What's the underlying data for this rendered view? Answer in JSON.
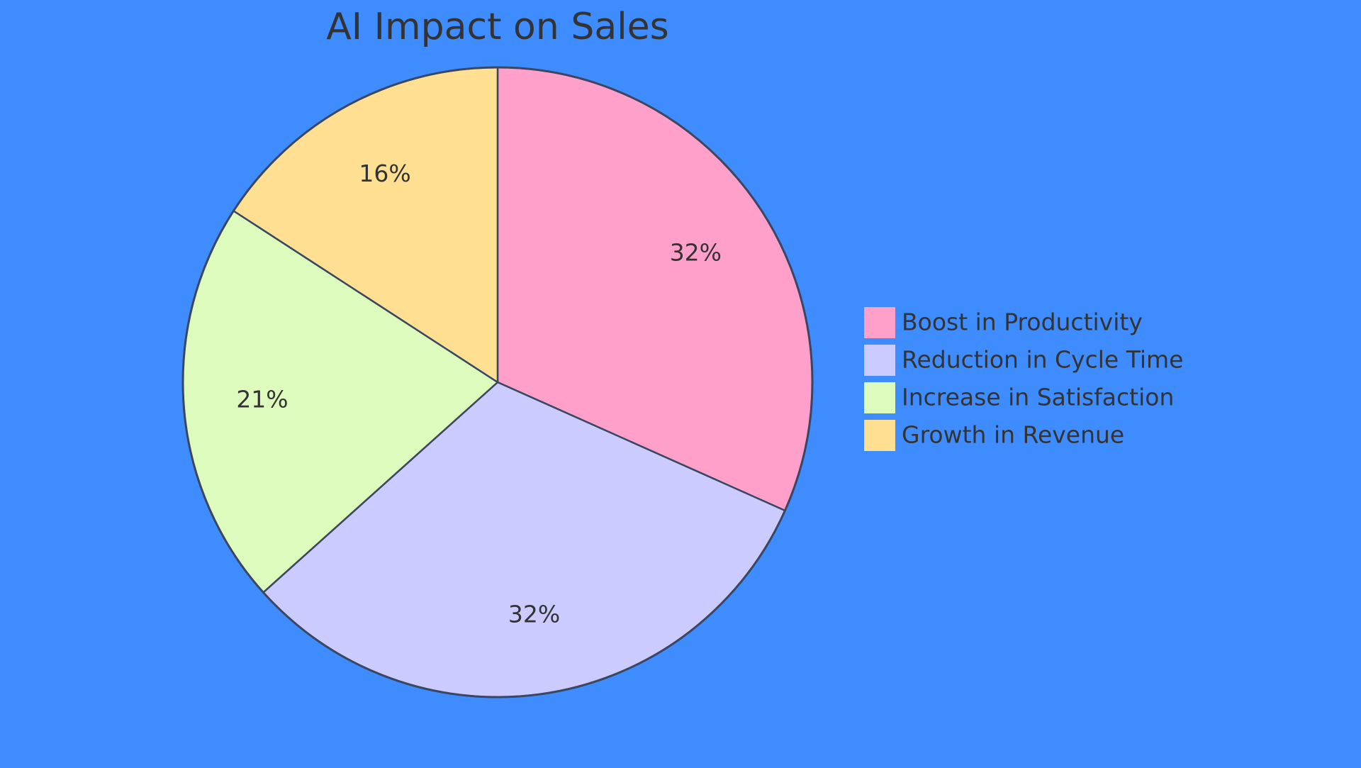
{
  "chart_data": {
    "type": "pie",
    "title": "AI Impact on Sales",
    "slices": [
      {
        "label": "Boost in Productivity",
        "value": 32,
        "display": "32%",
        "color": "#ffa0ca"
      },
      {
        "label": "Reduction in Cycle Time",
        "value": 32,
        "display": "32%",
        "color": "#cbcbff"
      },
      {
        "label": "Increase in Satisfaction",
        "value": 21,
        "display": "21%",
        "color": "#ddfbbc"
      },
      {
        "label": "Growth in Revenue",
        "value": 16,
        "display": "16%",
        "color": "#ffdf92"
      }
    ],
    "start_angle": "12 o'clock",
    "direction": "clockwise",
    "legend_position": "right"
  },
  "colors": {
    "background": "#3f8cff",
    "stroke": "#3b4660",
    "text": "#333333"
  }
}
